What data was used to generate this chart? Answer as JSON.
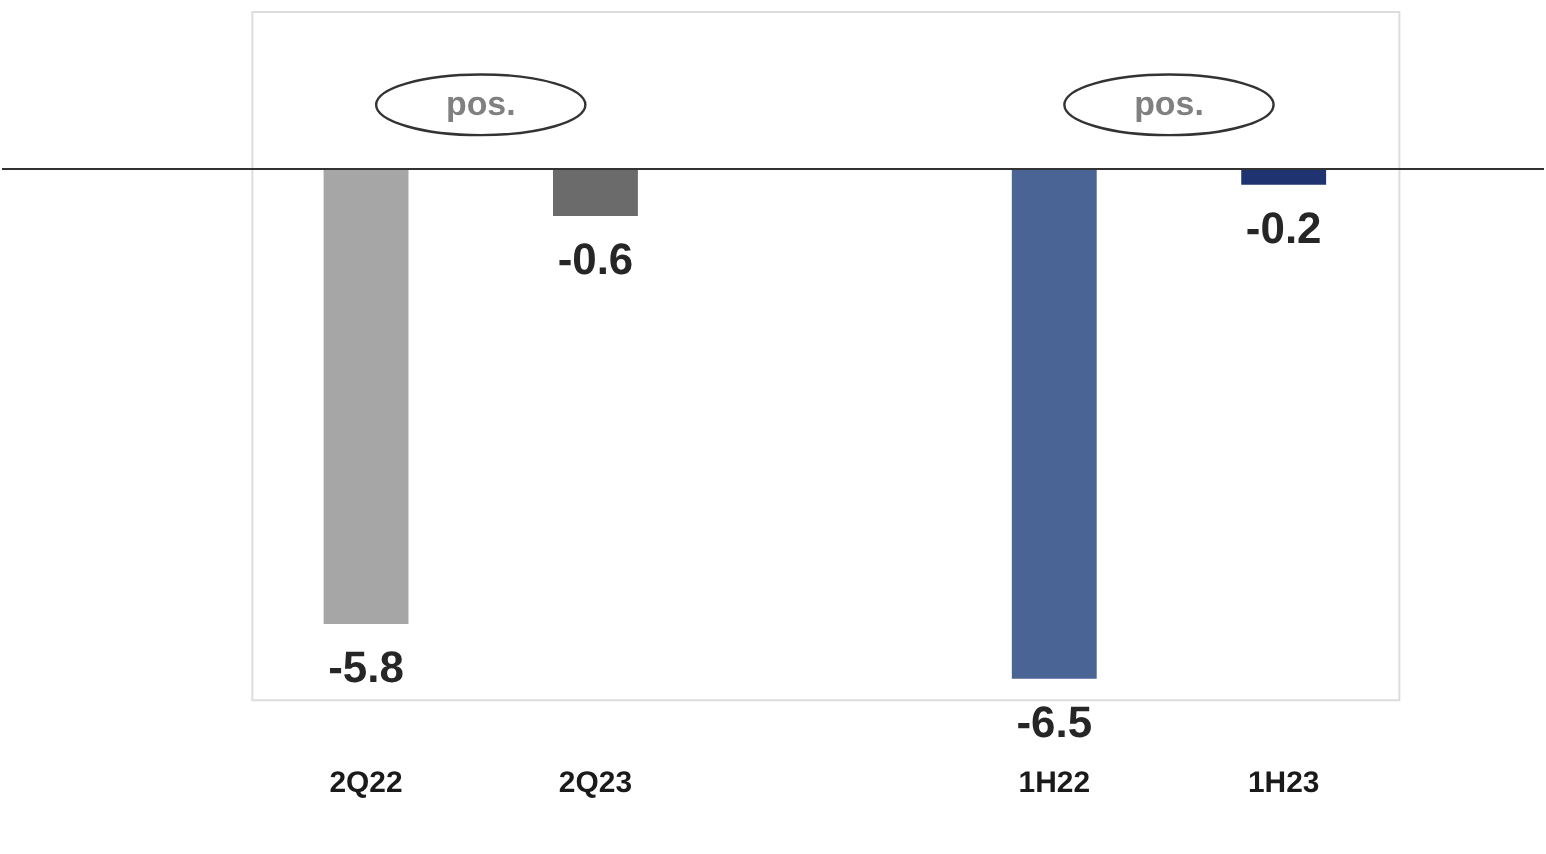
{
  "chart_data": {
    "type": "bar",
    "categories": [
      "2Q22",
      "2Q23",
      null,
      "1H22",
      "1H23"
    ],
    "values": [
      -5.8,
      -0.6,
      null,
      -6.5,
      -0.2
    ],
    "colors": [
      "#a6a6a6",
      "#6b6b6b",
      "#ffffff",
      "#4a6496",
      "#1f3370"
    ],
    "data_labels": true,
    "annotations": [
      "pos.",
      "pos."
    ]
  }
}
